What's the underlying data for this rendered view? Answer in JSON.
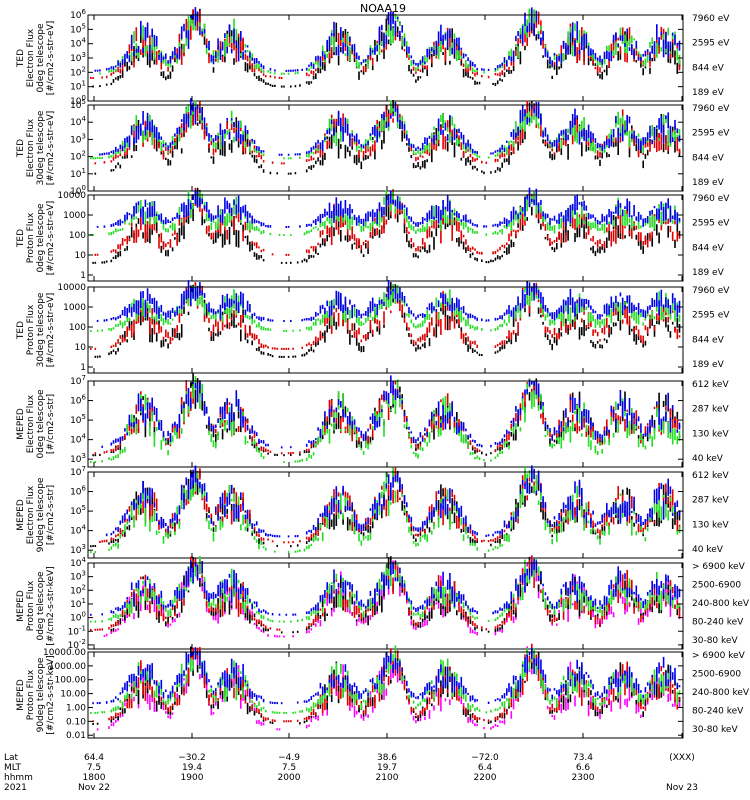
{
  "title": "NOAA19",
  "colors": {
    "black": "#000000",
    "red": "#e00000",
    "green": "#22dd22",
    "blue": "#0000ee",
    "magenta": "#ff00ff"
  },
  "chart_data": [
    {
      "type": "scatter",
      "id": "ted-e-0",
      "ylabel": [
        "TED",
        "Electron Flux",
        "0deg telescope",
        "[#/cm2-s-str-eV]"
      ],
      "yticks": [
        "10^0",
        "10^1",
        "10^2",
        "10^3",
        "10^4",
        "10^5",
        "10^6"
      ],
      "scale": "log",
      "ylim_exp": [
        0,
        6
      ],
      "series": [
        {
          "name": "7960 eV",
          "color": "black",
          "level": 1.0
        },
        {
          "name": "2595 eV",
          "color": "red",
          "level": 1.6
        },
        {
          "name": "844 eV",
          "color": "green",
          "level": 1.9
        },
        {
          "name": "189 eV",
          "color": "blue",
          "level": 2.1
        }
      ]
    },
    {
      "type": "scatter",
      "id": "ted-e-30",
      "ylabel": [
        "TED",
        "Electron Flux",
        "30deg telescope",
        "[#/cm2-s-str-eV]"
      ],
      "yticks": [
        "10^0",
        "10^1",
        "10^2",
        "10^3",
        "10^4",
        "10^5"
      ],
      "scale": "log",
      "ylim_exp": [
        0,
        5
      ],
      "series": [
        {
          "name": "7960 eV",
          "color": "black",
          "level": 1.0
        },
        {
          "name": "2595 eV",
          "color": "red",
          "level": 1.6
        },
        {
          "name": "844 eV",
          "color": "green",
          "level": 1.9
        },
        {
          "name": "189 eV",
          "color": "blue",
          "level": 2.1
        }
      ]
    },
    {
      "type": "scatter",
      "id": "ted-p-0",
      "ylabel": [
        "TED",
        "Proton Flux",
        "0deg telescope",
        "[#/cm2-s-str-eV]"
      ],
      "yticks": [
        "1",
        "10",
        "100",
        "1000",
        "10000"
      ],
      "scale": "log",
      "ylim_exp": [
        -0.3,
        4
      ],
      "series": [
        {
          "name": "7960 eV",
          "color": "black",
          "level": 0.6
        },
        {
          "name": "2595 eV",
          "color": "red",
          "level": 1.0
        },
        {
          "name": "844 eV",
          "color": "green",
          "level": 2.0
        },
        {
          "name": "189 eV",
          "color": "blue",
          "level": 2.4
        }
      ]
    },
    {
      "type": "scatter",
      "id": "ted-p-30",
      "ylabel": [
        "TED",
        "Proton Flux",
        "30deg telescope",
        "[#/cm2-s-str-eV]"
      ],
      "yticks": [
        "1",
        "10",
        "100",
        "1000",
        "10000"
      ],
      "scale": "log",
      "ylim_exp": [
        -0.3,
        4
      ],
      "series": [
        {
          "name": "7960 eV",
          "color": "black",
          "level": 0.5
        },
        {
          "name": "2595 eV",
          "color": "red",
          "level": 0.9
        },
        {
          "name": "844 eV",
          "color": "green",
          "level": 1.8
        },
        {
          "name": "189 eV",
          "color": "blue",
          "level": 2.3
        }
      ]
    },
    {
      "type": "scatter",
      "id": "meped-e-0",
      "ylabel": [
        "MEPED",
        "Electron Flux",
        "0deg telescope",
        "[#/cm2-s-str]"
      ],
      "yticks": [
        "10^3",
        "10^4",
        "10^5",
        "10^6",
        "10^7"
      ],
      "scale": "log",
      "ylim_exp": [
        2.6,
        7
      ],
      "series": [
        {
          "name": "612 keV",
          "color": "black",
          "level": 3.2
        },
        {
          "name": "287 keV",
          "color": "red",
          "level": 3.3
        },
        {
          "name": "130 keV",
          "color": "green",
          "level": 2.85
        },
        {
          "name": "40 keV",
          "color": "blue",
          "level": 3.6
        }
      ]
    },
    {
      "type": "scatter",
      "id": "meped-e-90",
      "ylabel": [
        "MEPED",
        "Electron Flux",
        "90deg telescope",
        "[#/cm2-s-str]"
      ],
      "yticks": [
        "10^3",
        "10^4",
        "10^5",
        "10^6",
        "10^7"
      ],
      "scale": "log",
      "ylim_exp": [
        2.6,
        7
      ],
      "series": [
        {
          "name": "612 keV",
          "color": "black",
          "level": 3.2
        },
        {
          "name": "287 keV",
          "color": "red",
          "level": 3.4
        },
        {
          "name": "130 keV",
          "color": "green",
          "level": 2.9
        },
        {
          "name": "40 keV",
          "color": "blue",
          "level": 3.7
        }
      ]
    },
    {
      "type": "scatter",
      "id": "meped-p-0",
      "ylabel": [
        "MEPED",
        "Proton Flux",
        "0deg telescope",
        "[#/cm2-s-str-keV]"
      ],
      "yticks": [
        "10^-2",
        "10^-1",
        "10^0",
        "10^1",
        "10^2",
        "10^3",
        "10^4"
      ],
      "scale": "log",
      "ylim_exp": [
        -2.3,
        4
      ],
      "series": [
        {
          "name": "> 6900 keV",
          "color": "magenta",
          "level": -1.4
        },
        {
          "name": "2500-6900",
          "color": "black",
          "level": -1.1
        },
        {
          "name": "240-800 keV",
          "color": "red",
          "level": -0.9
        },
        {
          "name": "80-240 keV",
          "color": "green",
          "level": -0.3
        },
        {
          "name": "30-80 keV",
          "color": "blue",
          "level": 0.2
        }
      ]
    },
    {
      "type": "scatter",
      "id": "meped-p-90",
      "ylabel": [
        "MEPED",
        "Proton Flux",
        "90deg telescope",
        "[#/cm2-s-str-keV]"
      ],
      "yticks": [
        "0.01",
        "0.10",
        "1.00",
        "10.00",
        "100.00",
        "1000.00",
        "10000.00"
      ],
      "scale": "log",
      "ylim_exp": [
        -2.2,
        4
      ],
      "series": [
        {
          "name": "> 6900 keV",
          "color": "magenta",
          "level": -1.6
        },
        {
          "name": "2500-6900",
          "color": "black",
          "level": -1.2
        },
        {
          "name": "240-800 keV",
          "color": "red",
          "level": -1.0
        },
        {
          "name": "80-240 keV",
          "color": "green",
          "level": -0.4
        },
        {
          "name": "30-80 keV",
          "color": "blue",
          "level": 0.3
        }
      ]
    }
  ],
  "xaxis": {
    "row_labels": [
      "Lat",
      "MLT",
      "hhmm",
      "2021"
    ],
    "ticks": [
      {
        "lat": "64.4",
        "mlt": "7.5",
        "time": "1800",
        "date": "Nov 22"
      },
      {
        "lat": "−30.2",
        "mlt": "19.4",
        "time": "1900",
        "date": ""
      },
      {
        "lat": "−4.9",
        "mlt": "7.5",
        "time": "2000",
        "date": ""
      },
      {
        "lat": "38.6",
        "mlt": "19.7",
        "time": "2100",
        "date": ""
      },
      {
        "lat": "−72.0",
        "mlt": "6.4",
        "time": "2200",
        "date": ""
      },
      {
        "lat": "73.4",
        "mlt": "6.6",
        "time": "2300",
        "date": ""
      },
      {
        "lat": "(XXX)",
        "mlt": "",
        "time": "",
        "date": "Nov 23"
      }
    ]
  }
}
